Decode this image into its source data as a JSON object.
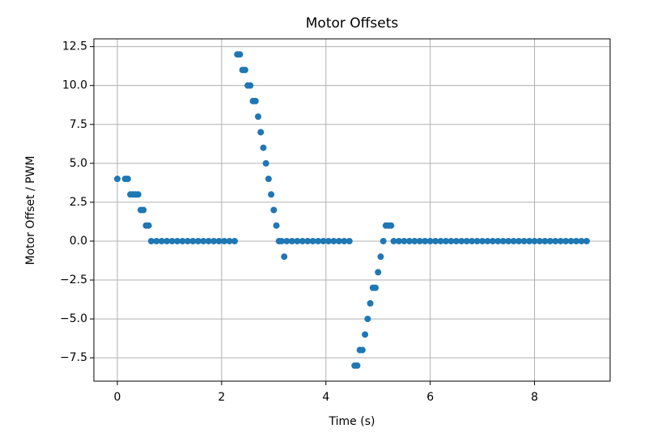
{
  "chart_data": {
    "type": "scatter",
    "title": "Motor Offsets",
    "x_label": "Time (s)",
    "y_label": "Motor Offset / PWM",
    "color": "#1f77b4",
    "grid": true,
    "xlim": [
      -0.45,
      9.45
    ],
    "ylim": [
      -9.0,
      13.0
    ],
    "xticks": [
      0,
      2,
      4,
      6,
      8
    ],
    "yticks": [
      {
        "value": -7.5,
        "label": "−7.5"
      },
      {
        "value": -5,
        "label": "−5.0"
      },
      {
        "value": -2.5,
        "label": "−2.5"
      },
      {
        "value": 0,
        "label": "0.0"
      },
      2.5,
      {
        "value": 5,
        "label": "5.0"
      },
      7.5,
      {
        "value": 10,
        "label": "10.0"
      },
      12.5
    ],
    "x": [
      0,
      0.15,
      0.2,
      0.25,
      0.3,
      0.35,
      0.4,
      0.45,
      0.5,
      0.55,
      0.6,
      0.65,
      0.75,
      0.85,
      0.95,
      1.05,
      1.15,
      1.25,
      1.35,
      1.45,
      1.55,
      1.65,
      1.75,
      1.85,
      1.95,
      2.05,
      2.15,
      2.25,
      2.3,
      2.35,
      2.4,
      2.45,
      2.5,
      2.55,
      2.6,
      2.65,
      2.7,
      2.75,
      2.8,
      2.85,
      2.9,
      2.95,
      3.0,
      3.05,
      3.1,
      3.15,
      3.2,
      3.25,
      3.35,
      3.45,
      3.55,
      3.65,
      3.75,
      3.85,
      3.95,
      4.05,
      4.15,
      4.25,
      4.35,
      4.45,
      4.55,
      4.6,
      4.65,
      4.7,
      4.75,
      4.8,
      4.85,
      4.9,
      4.95,
      5.0,
      5.05,
      5.1,
      5.15,
      5.2,
      5.25,
      5.3,
      5.4,
      5.5,
      5.6,
      5.7,
      5.8,
      5.9,
      6.0,
      6.1,
      6.2,
      6.3,
      6.4,
      6.5,
      6.6,
      6.7,
      6.8,
      6.9,
      7.0,
      7.1,
      7.2,
      7.3,
      7.4,
      7.5,
      7.6,
      7.7,
      7.8,
      7.9,
      8.0,
      8.1,
      8.2,
      8.3,
      8.4,
      8.5,
      8.6,
      8.7,
      8.8,
      8.9,
      9.0
    ],
    "y": [
      4,
      4,
      4,
      3,
      3,
      3,
      3,
      2,
      2,
      1,
      1,
      0,
      0,
      0,
      0,
      0,
      0,
      0,
      0,
      0,
      0,
      0,
      0,
      0,
      0,
      0,
      0,
      0,
      12,
      12,
      11,
      11,
      10,
      10,
      9,
      9,
      8,
      7,
      6,
      5,
      4,
      3,
      2,
      1,
      0,
      0,
      -1,
      0,
      0,
      0,
      0,
      0,
      0,
      0,
      0,
      0,
      0,
      0,
      0,
      0,
      -8,
      -8,
      -7,
      -7,
      -6,
      -5,
      -4,
      -3,
      -3,
      -2,
      -1,
      0,
      1,
      1,
      1,
      0,
      0,
      0,
      0,
      0,
      0,
      0,
      0,
      0,
      0,
      0,
      0,
      0,
      0,
      0,
      0,
      0,
      0,
      0,
      0,
      0,
      0,
      0,
      0,
      0,
      0,
      0,
      0,
      0,
      0,
      0,
      0,
      0,
      0,
      0,
      0,
      0,
      0
    ]
  }
}
